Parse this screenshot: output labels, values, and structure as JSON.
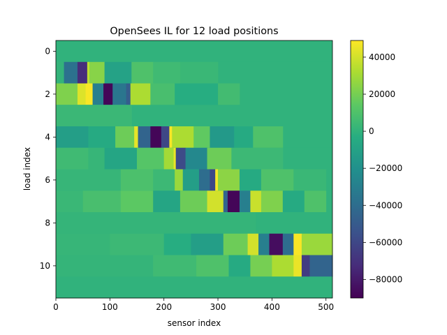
{
  "chart_data": {
    "type": "heatmap",
    "title": "OpenSees IL for 12 load positions",
    "xlabel": "sensor index",
    "ylabel": "load index",
    "x_range": [
      0,
      512
    ],
    "y_range": [
      -0.5,
      11.5
    ],
    "x_ticks": [
      0,
      100,
      200,
      300,
      400,
      500
    ],
    "y_ticks": [
      0,
      2,
      4,
      6,
      8,
      10
    ],
    "colorbar": {
      "vmin": -90000,
      "vmax": 49000,
      "ticks": [
        -80000,
        -60000,
        -40000,
        -20000,
        0,
        20000,
        40000
      ],
      "tick_labels": [
        "−80000",
        "−60000",
        "−40000",
        "−20000",
        "0",
        "20000",
        "40000"
      ],
      "colormap": "viridis"
    },
    "rows": [
      {
        "index": 0,
        "segments": []
      },
      {
        "index": 1,
        "segments": [
          {
            "x0": 0,
            "x1": 15,
            "v": 1000
          },
          {
            "x0": 15,
            "x1": 40,
            "v": -38000
          },
          {
            "x0": 40,
            "x1": 58,
            "v": -72000
          },
          {
            "x0": 58,
            "x1": 62,
            "v": 36000
          },
          {
            "x0": 62,
            "x1": 90,
            "v": 24000
          },
          {
            "x0": 90,
            "x1": 140,
            "v": -10000
          },
          {
            "x0": 140,
            "x1": 180,
            "v": 10000
          },
          {
            "x0": 180,
            "x1": 230,
            "v": 5000
          },
          {
            "x0": 230,
            "x1": 300,
            "v": 3000
          }
        ]
      },
      {
        "index": 2,
        "segments": [
          {
            "x0": 0,
            "x1": 40,
            "v": 22000
          },
          {
            "x0": 40,
            "x1": 55,
            "v": 42000
          },
          {
            "x0": 55,
            "x1": 68,
            "v": 48000
          },
          {
            "x0": 68,
            "x1": 88,
            "v": -30000
          },
          {
            "x0": 88,
            "x1": 105,
            "v": -88000
          },
          {
            "x0": 105,
            "x1": 130,
            "v": -35000
          },
          {
            "x0": 130,
            "x1": 138,
            "v": -48000
          },
          {
            "x0": 138,
            "x1": 175,
            "v": 32000
          },
          {
            "x0": 175,
            "x1": 220,
            "v": 8000
          },
          {
            "x0": 220,
            "x1": 300,
            "v": -3000
          },
          {
            "x0": 300,
            "x1": 340,
            "v": 6000
          }
        ]
      },
      {
        "index": 3,
        "segments": [
          {
            "x0": 0,
            "x1": 140,
            "v": 3500
          }
        ]
      },
      {
        "index": 4,
        "segments": [
          {
            "x0": 0,
            "x1": 60,
            "v": -12000
          },
          {
            "x0": 60,
            "x1": 110,
            "v": -5000
          },
          {
            "x0": 110,
            "x1": 145,
            "v": 18000
          },
          {
            "x0": 145,
            "x1": 152,
            "v": 44000
          },
          {
            "x0": 152,
            "x1": 175,
            "v": -45000
          },
          {
            "x0": 175,
            "x1": 195,
            "v": -88000
          },
          {
            "x0": 195,
            "x1": 210,
            "v": -60000
          },
          {
            "x0": 210,
            "x1": 215,
            "v": 48000
          },
          {
            "x0": 215,
            "x1": 255,
            "v": 32000
          },
          {
            "x0": 255,
            "x1": 285,
            "v": 15000
          },
          {
            "x0": 285,
            "x1": 330,
            "v": -15000
          },
          {
            "x0": 330,
            "x1": 365,
            "v": -5000
          },
          {
            "x0": 365,
            "x1": 420,
            "v": 10000
          }
        ]
      },
      {
        "index": 5,
        "segments": [
          {
            "x0": 0,
            "x1": 60,
            "v": 5000
          },
          {
            "x0": 60,
            "x1": 90,
            "v": 2000
          },
          {
            "x0": 90,
            "x1": 150,
            "v": -8000
          },
          {
            "x0": 150,
            "x1": 200,
            "v": 12000
          },
          {
            "x0": 200,
            "x1": 218,
            "v": 30000
          },
          {
            "x0": 218,
            "x1": 222,
            "v": 45000
          },
          {
            "x0": 222,
            "x1": 240,
            "v": -58000
          },
          {
            "x0": 240,
            "x1": 280,
            "v": -25000
          },
          {
            "x0": 280,
            "x1": 325,
            "v": 18000
          },
          {
            "x0": 325,
            "x1": 420,
            "v": 4000
          }
        ]
      },
      {
        "index": 6,
        "segments": [
          {
            "x0": 0,
            "x1": 120,
            "v": 2000
          },
          {
            "x0": 120,
            "x1": 180,
            "v": 9000
          },
          {
            "x0": 180,
            "x1": 220,
            "v": 4000
          },
          {
            "x0": 220,
            "x1": 235,
            "v": 28000
          },
          {
            "x0": 235,
            "x1": 265,
            "v": -12000
          },
          {
            "x0": 265,
            "x1": 285,
            "v": -40000
          },
          {
            "x0": 285,
            "x1": 295,
            "v": -60000
          },
          {
            "x0": 295,
            "x1": 300,
            "v": 48000
          },
          {
            "x0": 300,
            "x1": 340,
            "v": 25000
          },
          {
            "x0": 340,
            "x1": 380,
            "v": -5000
          },
          {
            "x0": 380,
            "x1": 440,
            "v": 10000
          },
          {
            "x0": 440,
            "x1": 500,
            "v": 3000
          }
        ]
      },
      {
        "index": 7,
        "segments": [
          {
            "x0": 0,
            "x1": 50,
            "v": 3000
          },
          {
            "x0": 50,
            "x1": 120,
            "v": 8000
          },
          {
            "x0": 120,
            "x1": 180,
            "v": 14000
          },
          {
            "x0": 180,
            "x1": 230,
            "v": -8000
          },
          {
            "x0": 230,
            "x1": 280,
            "v": 18000
          },
          {
            "x0": 280,
            "x1": 310,
            "v": 40000
          },
          {
            "x0": 310,
            "x1": 318,
            "v": -45000
          },
          {
            "x0": 318,
            "x1": 340,
            "v": -88000
          },
          {
            "x0": 340,
            "x1": 360,
            "v": -30000
          },
          {
            "x0": 360,
            "x1": 380,
            "v": 38000
          },
          {
            "x0": 380,
            "x1": 420,
            "v": 22000
          },
          {
            "x0": 420,
            "x1": 460,
            "v": -5000
          },
          {
            "x0": 460,
            "x1": 500,
            "v": 10000
          }
        ]
      },
      {
        "index": 8,
        "segments": [
          {
            "x0": 0,
            "x1": 370,
            "v": 1500
          }
        ]
      },
      {
        "index": 9,
        "segments": [
          {
            "x0": 0,
            "x1": 100,
            "v": 2000
          },
          {
            "x0": 100,
            "x1": 200,
            "v": 4000
          },
          {
            "x0": 200,
            "x1": 250,
            "v": -3000
          },
          {
            "x0": 250,
            "x1": 310,
            "v": -12000
          },
          {
            "x0": 310,
            "x1": 355,
            "v": 18000
          },
          {
            "x0": 355,
            "x1": 375,
            "v": 40000
          },
          {
            "x0": 375,
            "x1": 395,
            "v": -30000
          },
          {
            "x0": 395,
            "x1": 420,
            "v": -85000
          },
          {
            "x0": 420,
            "x1": 440,
            "v": -40000
          },
          {
            "x0": 440,
            "x1": 455,
            "v": 48000
          },
          {
            "x0": 455,
            "x1": 512,
            "v": 28000
          }
        ]
      },
      {
        "index": 10,
        "segments": [
          {
            "x0": 0,
            "x1": 180,
            "v": 1500
          },
          {
            "x0": 180,
            "x1": 260,
            "v": 5000
          },
          {
            "x0": 260,
            "x1": 320,
            "v": 10000
          },
          {
            "x0": 320,
            "x1": 360,
            "v": -5000
          },
          {
            "x0": 360,
            "x1": 400,
            "v": 20000
          },
          {
            "x0": 400,
            "x1": 440,
            "v": 32000
          },
          {
            "x0": 440,
            "x1": 455,
            "v": 45000
          },
          {
            "x0": 455,
            "x1": 470,
            "v": -65000
          },
          {
            "x0": 470,
            "x1": 512,
            "v": -45000
          }
        ]
      },
      {
        "index": 11,
        "segments": []
      }
    ]
  }
}
